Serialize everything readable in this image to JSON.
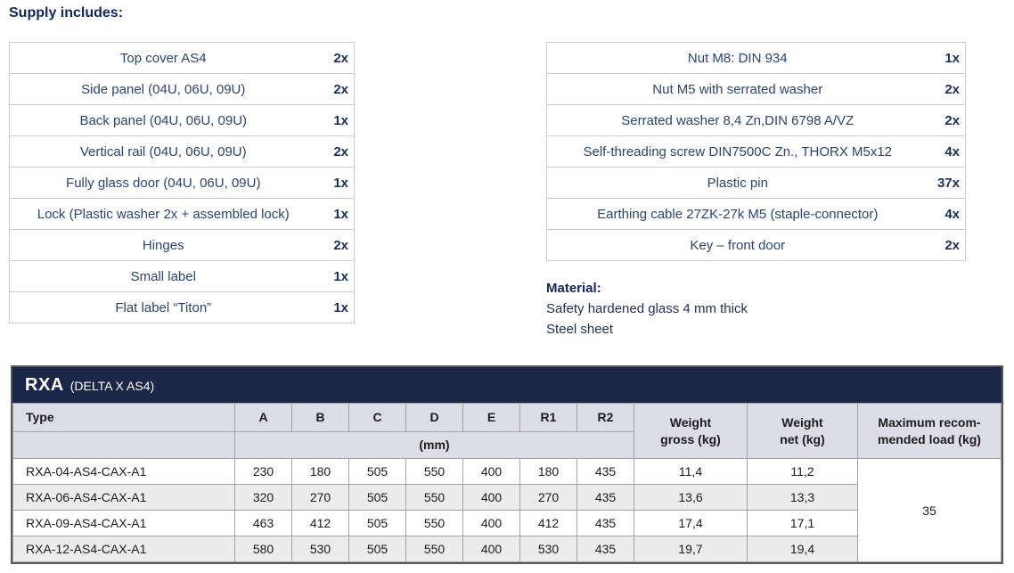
{
  "page": {
    "heading": "Supply includes:"
  },
  "supply_left": {
    "items": [
      {
        "name": "Top cover AS4",
        "qty": "2x"
      },
      {
        "name": "Side panel (04U, 06U, 09U)",
        "qty": "2x"
      },
      {
        "name": "Back panel (04U, 06U, 09U)",
        "qty": "1x"
      },
      {
        "name": "Vertical rail (04U, 06U, 09U)",
        "qty": "2x"
      },
      {
        "name": "Fully glass door (04U, 06U, 09U)",
        "qty": "1x"
      },
      {
        "name": "Lock (Plastic washer 2x + assembled lock)",
        "qty": "1x"
      },
      {
        "name": "Hinges",
        "qty": "2x"
      },
      {
        "name": "Small label",
        "qty": "1x"
      },
      {
        "name": "Flat label “Titon”",
        "qty": "1x"
      }
    ]
  },
  "supply_right": {
    "items": [
      {
        "name": "Nut M8: DIN 934",
        "qty": "1x"
      },
      {
        "name": "Nut M5 with serrated washer",
        "qty": "2x"
      },
      {
        "name": "Serrated washer 8,4 Zn,DIN 6798 A/VZ",
        "qty": "2x"
      },
      {
        "name": "Self-threading screw DIN7500C Zn., THORX M5x12",
        "qty": "4x"
      },
      {
        "name": "Plastic pin",
        "qty": "37x"
      },
      {
        "name": "Earthing cable 27ZK-27k M5 (staple-connector)",
        "qty": "4x"
      },
      {
        "name": "Key – front door",
        "qty": "2x"
      }
    ]
  },
  "material": {
    "heading": "Material:",
    "lines": [
      "Safety hardened glass 4 mm thick",
      "Steel sheet"
    ]
  },
  "spec_table": {
    "title_main": "RXA",
    "title_sub": "(DELTA X AS4)",
    "type_header": "Type",
    "dim_headers": [
      "A",
      "B",
      "C",
      "D",
      "E",
      "R1",
      "R2"
    ],
    "unit_label": "(mm)",
    "weight_gross_label": "Weight\ngross (kg)",
    "weight_net_label": "Weight\nnet (kg)",
    "max_load_label": "Maximum recom-\nmended load (kg)",
    "rows": [
      {
        "type": "RXA-04-AS4-CAX-A1",
        "values": [
          "230",
          "180",
          "505",
          "550",
          "400",
          "180",
          "435"
        ],
        "weight_gross": "11,4",
        "weight_net": "11,2"
      },
      {
        "type": "RXA-06-AS4-CAX-A1",
        "values": [
          "320",
          "270",
          "505",
          "550",
          "400",
          "270",
          "435"
        ],
        "weight_gross": "13,6",
        "weight_net": "13,3"
      },
      {
        "type": "RXA-09-AS4-CAX-A1",
        "values": [
          "463",
          "412",
          "505",
          "550",
          "400",
          "412",
          "435"
        ],
        "weight_gross": "17,4",
        "weight_net": "17,1"
      },
      {
        "type": "RXA-12-AS4-CAX-A1",
        "values": [
          "580",
          "530",
          "505",
          "550",
          "400",
          "530",
          "435"
        ],
        "weight_gross": "19,7",
        "weight_net": "19,4"
      }
    ],
    "max_load_value": "35"
  },
  "colors": {
    "header_band": "#1b2648",
    "spec_header_bg": "#dcdde7",
    "row_stripe": "#ececec",
    "text_navy": "#2b4472",
    "qty_navy": "#1b2f5e",
    "heading_navy": "#13265c",
    "border_gray": "#a3a3a3"
  }
}
